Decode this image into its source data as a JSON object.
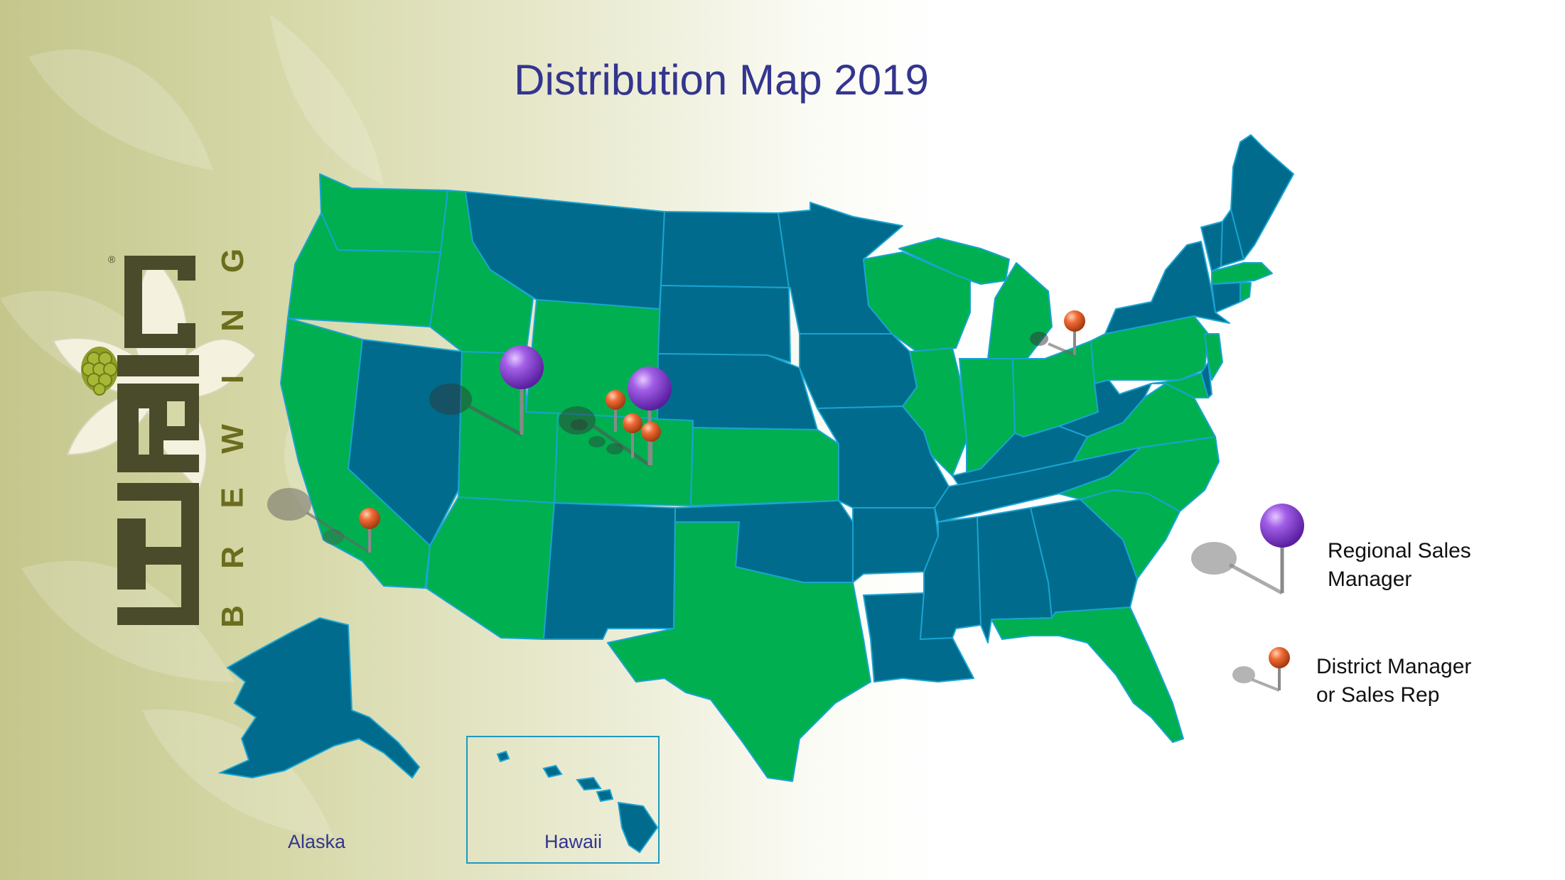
{
  "title": "Distribution Map 2019",
  "brand": {
    "name_letters": [
      "E",
      "P",
      "I",
      "C"
    ],
    "subtitle_letters": [
      "B",
      "R",
      "E",
      "W",
      "I",
      "N",
      "G"
    ],
    "registered_mark": "®",
    "logo_icon": "hop-leaf-icon"
  },
  "colors": {
    "distributed_state": "#00b050",
    "other_state": "#006b8c",
    "state_border": "#1aa3d1",
    "title": "#33358f",
    "regional_pin": "#8f47dc",
    "district_pin": "#f06b36",
    "logo_dark": "#4a4b2a",
    "logo_olive": "#6b6d1e"
  },
  "insets": {
    "alaska_label": "Alaska",
    "hawaii_label": "Hawaii"
  },
  "legend": {
    "regional": {
      "line1": "Regional Sales",
      "line2": "Manager",
      "icon": "purple-pin-icon"
    },
    "district": {
      "line1": "District Manager",
      "line2": "or Sales Rep",
      "icon": "orange-pin-icon"
    }
  },
  "pins": [
    {
      "type": "regional",
      "location": "Utah"
    },
    {
      "type": "regional",
      "location": "Colorado"
    },
    {
      "type": "district",
      "location": "Colorado"
    },
    {
      "type": "district",
      "location": "Colorado"
    },
    {
      "type": "district",
      "location": "Colorado"
    },
    {
      "type": "district",
      "location": "California"
    },
    {
      "type": "district",
      "location": "Ohio"
    }
  ]
}
